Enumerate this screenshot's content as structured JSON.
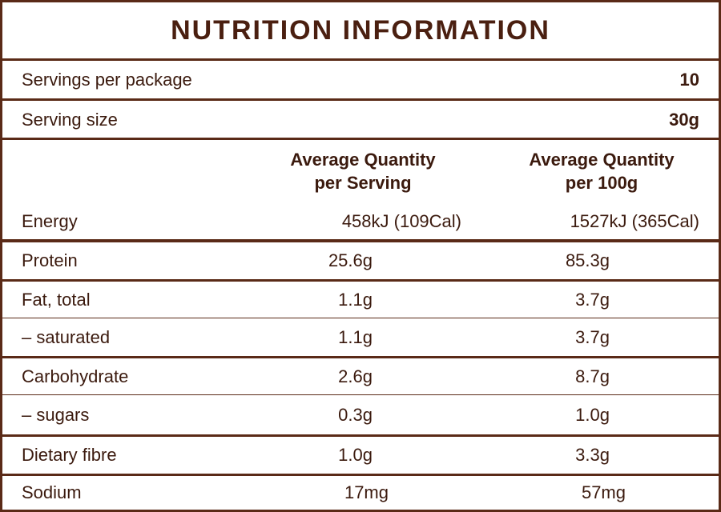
{
  "title": "NUTRITION INFORMATION",
  "servings_per_package": {
    "label": "Servings per package",
    "value": "10"
  },
  "serving_size": {
    "label": "Serving size",
    "value": "30g"
  },
  "columns": {
    "per_serving": [
      "Average Quantity",
      "per Serving"
    ],
    "per_100g": [
      "Average Quantity",
      "per 100g"
    ]
  },
  "rows": [
    {
      "label": "Energy",
      "per_serving": "458kJ (109Cal)",
      "per_100g": "1527kJ (365Cal)"
    },
    {
      "label": "Protein",
      "per_serving": "25.6g",
      "per_100g": "85.3g"
    },
    {
      "label": "Fat, total",
      "per_serving": "1.1g",
      "per_100g": "3.7g"
    },
    {
      "label": "– saturated",
      "per_serving": "1.1g",
      "per_100g": "3.7g"
    },
    {
      "label": "Carbohydrate",
      "per_serving": "2.6g",
      "per_100g": "8.7g"
    },
    {
      "label": "– sugars",
      "per_serving": "0.3g",
      "per_100g": "1.0g"
    },
    {
      "label": "Dietary fibre",
      "per_serving": "1.0g",
      "per_100g": "3.3g"
    },
    {
      "label": "Sodium",
      "per_serving": "17mg",
      "per_100g": "57mg"
    }
  ]
}
